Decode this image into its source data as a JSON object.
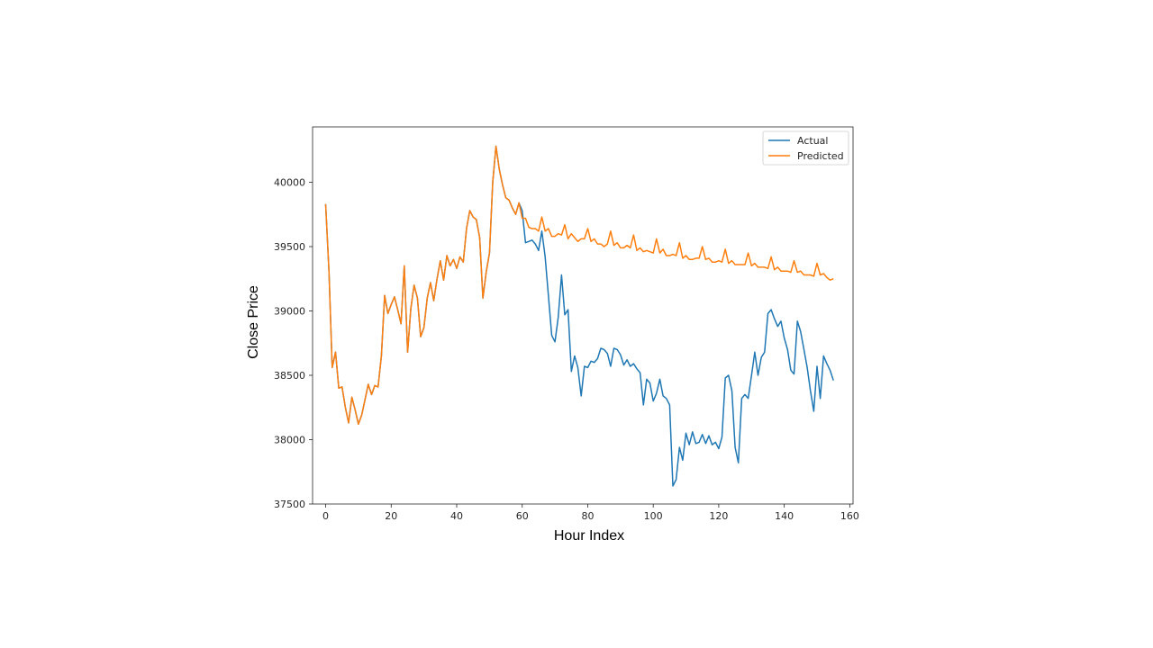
{
  "chart_data": {
    "type": "line",
    "xlabel": "Hour Index",
    "ylabel": "Close Price",
    "xlim": [
      -4,
      161
    ],
    "ylim": [
      37500,
      40430
    ],
    "xticks": [
      0,
      20,
      40,
      60,
      80,
      100,
      120,
      140,
      160
    ],
    "yticks": [
      37500,
      38000,
      38500,
      39000,
      39500,
      40000
    ],
    "grid": false,
    "legend": "upper right",
    "series": [
      {
        "name": "Actual",
        "color": "#1f77b4",
        "x_start": 0,
        "values": [
          39830,
          39310,
          38560,
          38680,
          38400,
          38410,
          38250,
          38130,
          38330,
          38230,
          38120,
          38190,
          38310,
          38430,
          38350,
          38420,
          38410,
          38650,
          39120,
          38980,
          39050,
          39110,
          39010,
          38900,
          39350,
          38680,
          39020,
          39200,
          39100,
          38800,
          38870,
          39100,
          39220,
          39080,
          39250,
          39390,
          39240,
          39430,
          39350,
          39400,
          39330,
          39420,
          39380,
          39640,
          39780,
          39730,
          39710,
          39570,
          39100,
          39300,
          39450,
          40000,
          40280,
          40100,
          39980,
          39880,
          39860,
          39800,
          39750,
          39840,
          39780,
          39530,
          39540,
          39550,
          39520,
          39470,
          39620,
          39420,
          39120,
          38810,
          38760,
          38950,
          39280,
          38970,
          39010,
          38530,
          38650,
          38560,
          38340,
          38570,
          38560,
          38610,
          38600,
          38630,
          38710,
          38700,
          38670,
          38570,
          38710,
          38700,
          38660,
          38580,
          38620,
          38570,
          38590,
          38550,
          38520,
          38270,
          38470,
          38440,
          38300,
          38360,
          38470,
          38340,
          38320,
          38270,
          37640,
          37690,
          37940,
          37840,
          38050,
          37960,
          38060,
          37970,
          37980,
          38040,
          37970,
          38030,
          37960,
          37980,
          37930,
          38020,
          38480,
          38500,
          38380,
          37940,
          37820,
          38320,
          38350,
          38320,
          38500,
          38680,
          38500,
          38640,
          38680,
          38980,
          39010,
          38940,
          38880,
          38920,
          38790,
          38700,
          38540,
          38510,
          38920,
          38840,
          38700,
          38560,
          38380,
          38220,
          38570,
          38320,
          38650,
          38590,
          38540,
          38460
        ]
      },
      {
        "name": "Predicted",
        "color": "#ff7f0e",
        "x_start": 0,
        "values": [
          39830,
          39310,
          38560,
          38680,
          38400,
          38410,
          38250,
          38130,
          38330,
          38230,
          38120,
          38190,
          38310,
          38430,
          38350,
          38420,
          38410,
          38650,
          39120,
          38980,
          39050,
          39110,
          39010,
          38900,
          39350,
          38680,
          39020,
          39200,
          39100,
          38800,
          38870,
          39100,
          39220,
          39080,
          39250,
          39390,
          39240,
          39430,
          39350,
          39400,
          39330,
          39420,
          39380,
          39640,
          39780,
          39730,
          39710,
          39570,
          39100,
          39300,
          39450,
          40000,
          40280,
          40100,
          39980,
          39880,
          39860,
          39800,
          39750,
          39840,
          39720,
          39720,
          39650,
          39640,
          39640,
          39620,
          39730,
          39620,
          39640,
          39580,
          39580,
          39600,
          39590,
          39670,
          39560,
          39600,
          39570,
          39540,
          39560,
          39560,
          39640,
          39540,
          39560,
          39520,
          39520,
          39500,
          39520,
          39620,
          39510,
          39530,
          39490,
          39490,
          39510,
          39490,
          39590,
          39470,
          39490,
          39460,
          39470,
          39460,
          39450,
          39560,
          39450,
          39480,
          39430,
          39430,
          39440,
          39430,
          39530,
          39410,
          39430,
          39400,
          39400,
          39410,
          39410,
          39500,
          39400,
          39410,
          39380,
          39380,
          39390,
          39380,
          39480,
          39370,
          39390,
          39360,
          39360,
          39360,
          39360,
          39450,
          39350,
          39370,
          39340,
          39340,
          39340,
          39330,
          39420,
          39320,
          39340,
          39310,
          39310,
          39310,
          39300,
          39390,
          39300,
          39310,
          39280,
          39280,
          39280,
          39270,
          39370,
          39280,
          39290,
          39260,
          39240,
          39250
        ]
      }
    ]
  }
}
